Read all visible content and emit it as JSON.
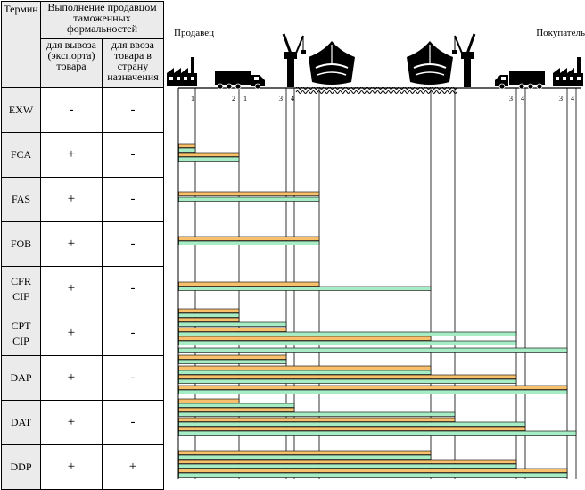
{
  "table": {
    "header": {
      "term": "Термин",
      "customs": "Выполнение продавцом таможенных формальностей",
      "export": "для вывоза (экспорта) товара",
      "import": "для ввоза товара в страну назначения"
    },
    "rows": [
      {
        "term": [
          "EXW"
        ],
        "export": "-",
        "import": "-"
      },
      {
        "term": [
          "FCA"
        ],
        "export": "+",
        "import": "-"
      },
      {
        "term": [
          "FAS"
        ],
        "export": "+",
        "import": "-"
      },
      {
        "term": [
          "FOB"
        ],
        "export": "+",
        "import": "-"
      },
      {
        "term": [
          "CFR",
          "CIF"
        ],
        "export": "+",
        "import": "-"
      },
      {
        "term": [
          "CPT",
          "CIP"
        ],
        "export": "+",
        "import": "-"
      },
      {
        "term": [
          "DAP"
        ],
        "export": "+",
        "import": "-"
      },
      {
        "term": [
          "DAT"
        ],
        "export": "+",
        "import": "-"
      },
      {
        "term": [
          "DDP"
        ],
        "export": "+",
        "import": "+"
      }
    ]
  },
  "diagram": {
    "seller_label": "Продавец",
    "buyer_label": "Покупатель",
    "marker_labels": [
      "1",
      "2",
      "1",
      "3",
      "4",
      "3",
      "4",
      "3",
      "4"
    ],
    "colors": {
      "orange": "#f9c06b",
      "green": "#a6ecc4",
      "stroke": "#000000"
    },
    "icons": [
      "factory-icon",
      "truck-icon",
      "crane-icon",
      "ship-icon",
      "ship-icon",
      "crane-icon",
      "truck-icon",
      "factory-icon"
    ]
  }
}
